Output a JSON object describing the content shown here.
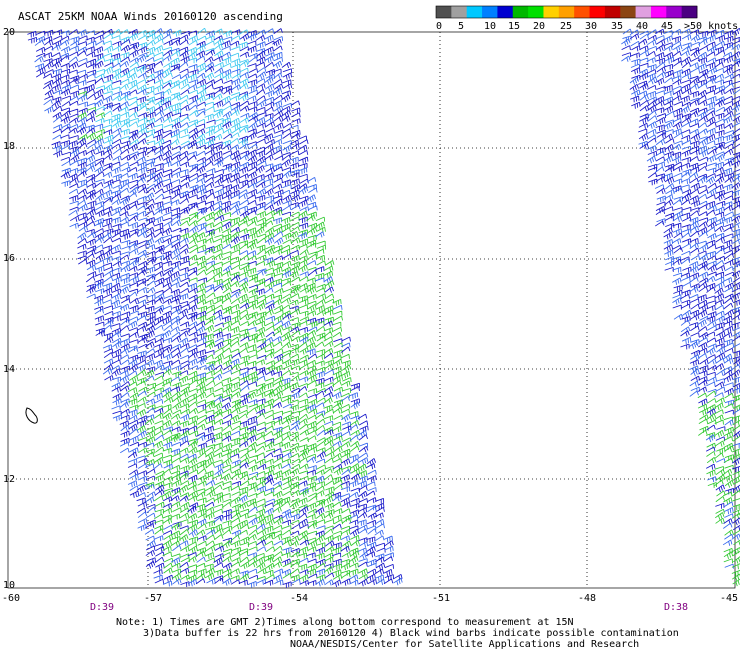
{
  "title": "ASCAT 25KM NOAA Winds 20160120 ascending",
  "legend": {
    "colors": [
      "#505050",
      "#a0a0a0",
      "#00c8ff",
      "#0080ff",
      "#0000d0",
      "#00b800",
      "#00e000",
      "#ffd000",
      "#ffa000",
      "#ff5000",
      "#ff0000",
      "#c00000",
      "#8b4513",
      "#e0a0e0",
      "#ff00ff",
      "#9900cc",
      "#4b0082"
    ],
    "labels": [
      "0",
      "5",
      "10",
      "15",
      "20",
      "25",
      "30",
      "35",
      "40",
      "45",
      ">50 knots"
    ]
  },
  "map": {
    "lon_labels": [
      "-60",
      "-57",
      "-54",
      "-51",
      "-48",
      "-45"
    ],
    "lat_labels": [
      "20",
      "18",
      "16",
      "14",
      "12",
      "10"
    ]
  },
  "times": [
    "D:39",
    "D:39",
    "D:38"
  ],
  "notes": [
    "Note: 1) Times are GMT 2)Times along bottom correspond to measurement at 15N",
    "3)Data buffer is 22 hrs from 20160120 4) Black wind barbs indicate possible contamination",
    "NOAA/NESDIS/Center for Satellite Applications and Research"
  ]
}
